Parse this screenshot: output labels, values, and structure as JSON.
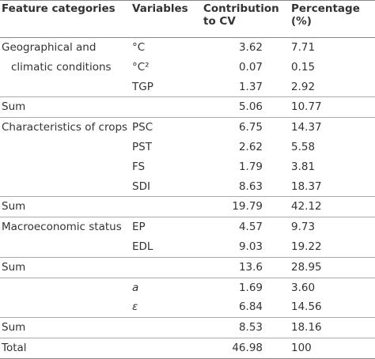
{
  "header": {
    "category": "Feature categories",
    "variable": "Variables",
    "contribution": "Contribution to CV",
    "percentage": "Percentage (%)"
  },
  "rows": [
    {
      "category": "Geographical and climatic conditions",
      "variable": "°C",
      "contribution": "3.62",
      "percentage": "7.71"
    },
    {
      "variable": "°C²",
      "contribution": "0.07",
      "percentage": "0.15"
    },
    {
      "variable": "TGP",
      "contribution": "1.37",
      "percentage": "2.92"
    },
    {
      "category": "Sum",
      "contribution": "5.06",
      "percentage": "10.77"
    },
    {
      "category": "Characteristics of crops",
      "variable": "PSC",
      "contribution": "6.75",
      "percentage": "14.37"
    },
    {
      "variable": "PST",
      "contribution": "2.62",
      "percentage": "5.58"
    },
    {
      "variable": "FS",
      "contribution": "1.79",
      "percentage": "3.81"
    },
    {
      "variable": "SDI",
      "contribution": "8.63",
      "percentage": "18.37"
    },
    {
      "category": "Sum",
      "contribution": "19.79",
      "percentage": "42.12"
    },
    {
      "category": "Macroeconomic status",
      "variable": "EP",
      "contribution": "4.57",
      "percentage": "9.73"
    },
    {
      "variable": "EDL",
      "contribution": "9.03",
      "percentage": "19.22"
    },
    {
      "category": "Sum",
      "contribution": "13.6",
      "percentage": "28.95"
    },
    {
      "variable": "a",
      "contribution": "1.69",
      "percentage": "3.60"
    },
    {
      "variable": "ε",
      "contribution": "6.84",
      "percentage": "14.56"
    },
    {
      "category": "Sum",
      "contribution": "8.53",
      "percentage": "18.16"
    },
    {
      "category": "Total",
      "contribution": "46.98",
      "percentage": "100"
    }
  ]
}
